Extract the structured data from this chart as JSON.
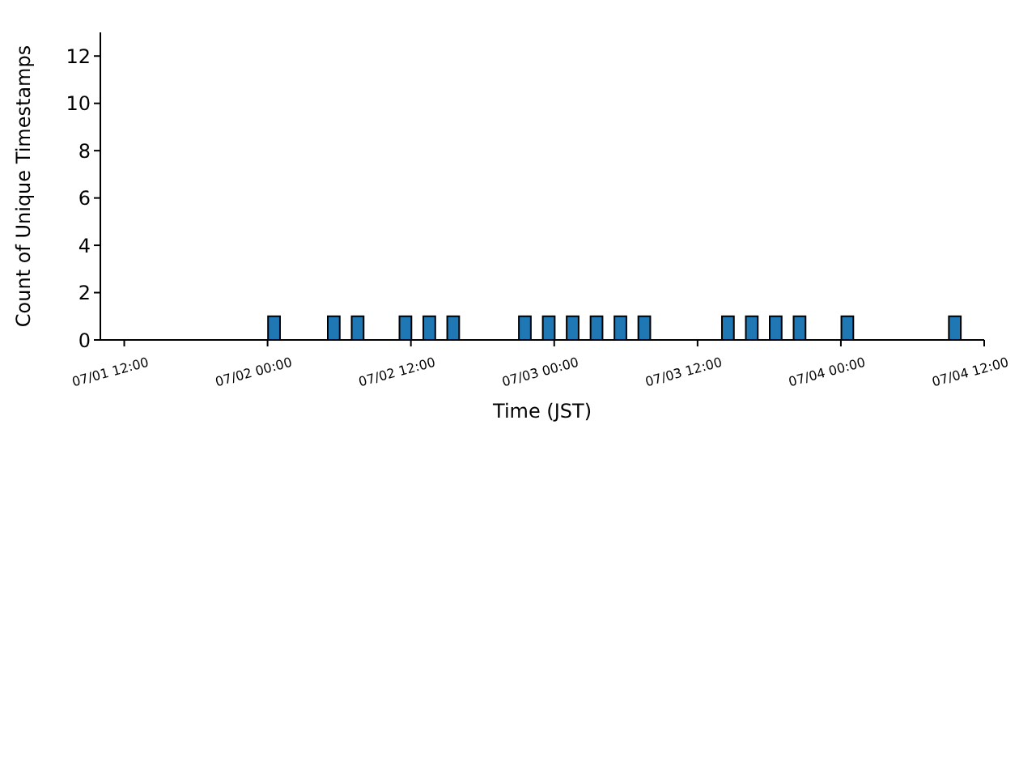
{
  "chart_data": {
    "type": "bar",
    "xlabel": "Time (JST)",
    "ylabel": "Count of Unique Timestamps",
    "x": [
      "--07-02T00:30",
      "--07-02T05:30",
      "--07-02T07:30",
      "--07-02T11:30",
      "--07-02T13:30",
      "--07-02T15:30",
      "--07-02T21:30",
      "--07-02T23:30",
      "--07-03T01:30",
      "--07-03T03:30",
      "--07-03T05:30",
      "--07-03T07:30",
      "--07-03T14:30",
      "--07-03T16:30",
      "--07-03T18:30",
      "--07-03T20:30",
      "--07-04T00:30",
      "--07-04T09:30"
    ],
    "values": [
      1,
      1,
      1,
      1,
      1,
      1,
      1,
      1,
      1,
      1,
      1,
      1,
      1,
      1,
      1,
      1,
      1,
      1
    ],
    "color": "#1f77b4",
    "xlim": [
      "--07-01T10:00",
      "--07-04T12:00"
    ],
    "xticks": [
      {
        "value": "--07-01T12:00",
        "label": "07/01 12:00"
      },
      {
        "value": "--07-02T00:00",
        "label": "07/02 00:00"
      },
      {
        "value": "--07-02T12:00",
        "label": "07/02 12:00"
      },
      {
        "value": "--07-03T00:00",
        "label": "07/03 00:00"
      },
      {
        "value": "--07-03T12:00",
        "label": "07/03 12:00"
      },
      {
        "value": "--07-04T00:00",
        "label": "07/04 00:00"
      },
      {
        "value": "--07-04T12:00",
        "label": "07/04 12:00"
      }
    ],
    "ylim": [
      0,
      13
    ],
    "yticks": [
      0,
      2,
      4,
      6,
      8,
      10,
      12
    ],
    "grid": false,
    "legend": false
  }
}
